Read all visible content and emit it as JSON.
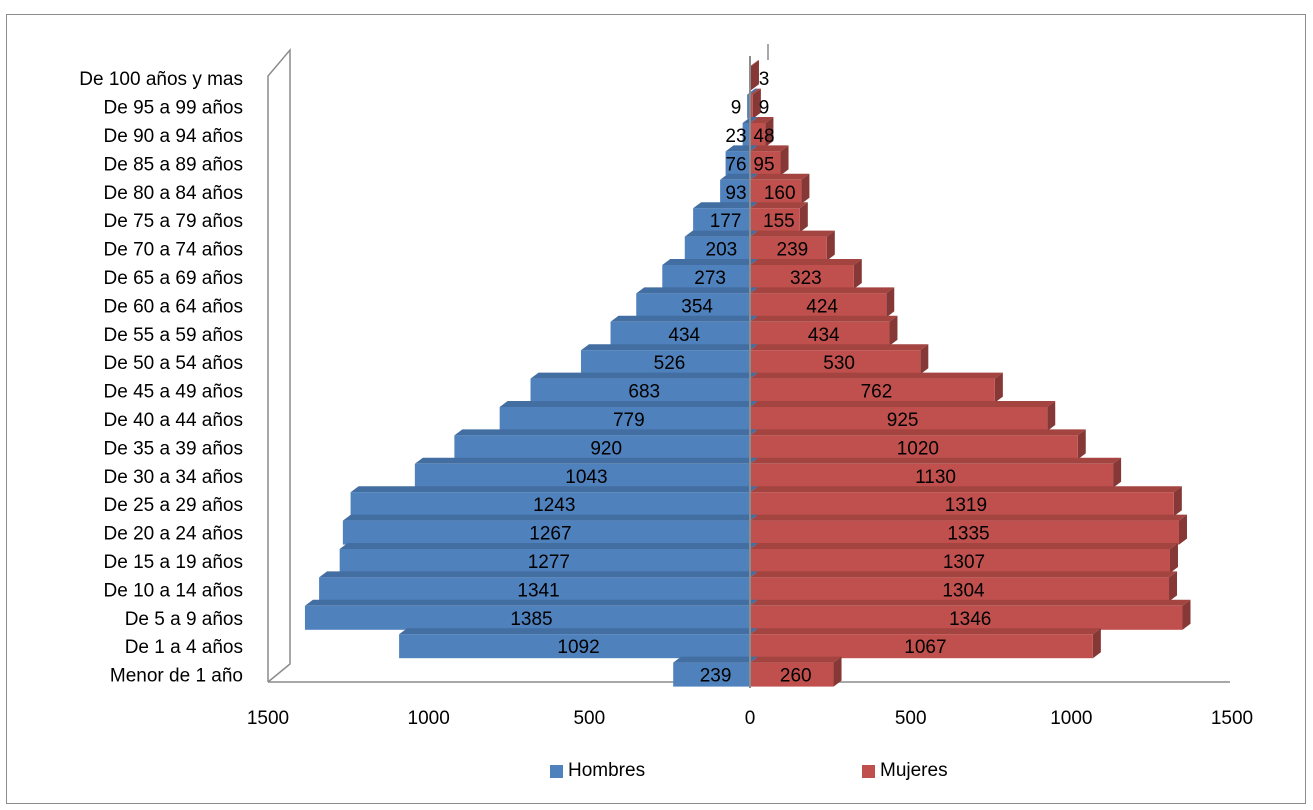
{
  "chart_data": {
    "type": "bar",
    "orientation": "horizontal",
    "subtype": "population-pyramid-3d",
    "categories": [
      "De 100 años y mas",
      "De 95 a 99 años",
      "De 90 a 94 años",
      "De 85 a 89 años",
      "De 80 a 84 años",
      "De 75 a 79 años",
      "De 70 a 74 años",
      "De 65 a 69 años",
      "De 60 a 64 años",
      "De 55 a 59 años",
      "De 50 a 54 años",
      "De 45 a 49 años",
      "De 40 a 44 años",
      "De 35 a 39 años",
      "De 30 a 34 años",
      "De 25 a 29 años",
      "De 20 a 24 años",
      "De 15 a 19 años",
      "De 10 a 14 años",
      "De 5 a 9 años",
      "De 1 a 4 años",
      "Menor de 1 año"
    ],
    "series": [
      {
        "name": "Hombres",
        "color": "#4F81BD",
        "values": [
          0,
          9,
          23,
          76,
          93,
          177,
          203,
          273,
          354,
          434,
          526,
          683,
          779,
          920,
          1043,
          1243,
          1267,
          1277,
          1341,
          1385,
          1092,
          239
        ],
        "labels": [
          "",
          "9",
          "23",
          "76",
          "93",
          "177",
          "203",
          "273",
          "354",
          "434",
          "526",
          "683",
          "779",
          "920",
          "1043",
          "1243",
          "1267",
          "1277",
          "1341",
          "1385",
          "1092",
          "239"
        ]
      },
      {
        "name": "Mujeres",
        "color": "#C0504D",
        "values": [
          3,
          9,
          48,
          95,
          160,
          155,
          239,
          323,
          424,
          434,
          530,
          762,
          925,
          1020,
          1130,
          1319,
          1335,
          1307,
          1304,
          1346,
          1067,
          260
        ],
        "labels": [
          "3",
          "9",
          "48",
          "95",
          "160",
          "155",
          "239",
          "323",
          "424",
          "434",
          "530",
          "762",
          "925",
          "1020",
          "1130",
          "1319",
          "1335",
          "1307",
          "1304",
          "1346",
          "1067",
          "260"
        ]
      }
    ],
    "x_ticks": [
      "1500",
      "1000",
      "500",
      "0",
      "500",
      "1000",
      "1500"
    ],
    "xlim": [
      -1500,
      1500
    ],
    "legend_position": "bottom",
    "grid": false,
    "title": "",
    "xlabel": "",
    "ylabel": ""
  }
}
